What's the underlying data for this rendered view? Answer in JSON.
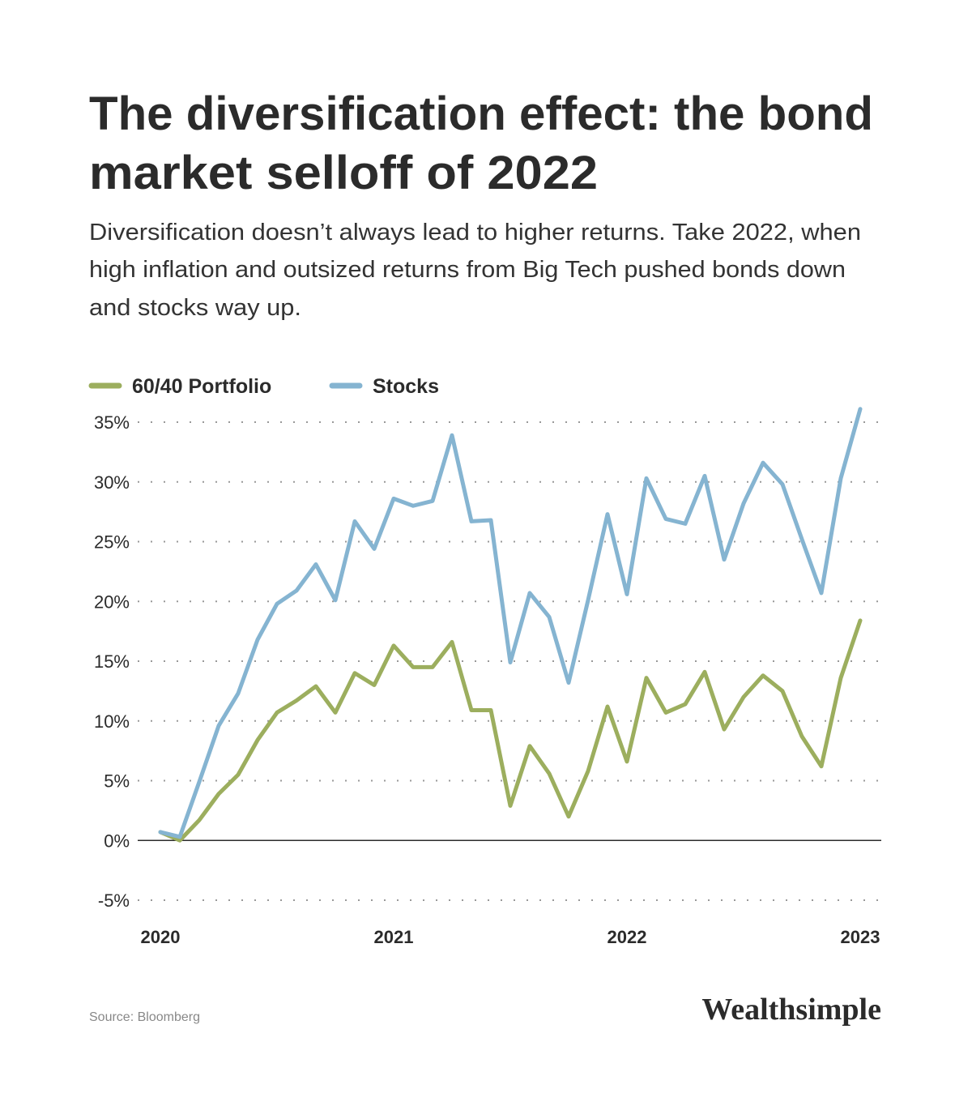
{
  "chart_data": {
    "type": "line",
    "title": [
      "The diversification effect: the bond",
      "market selloff of 2022"
    ],
    "subtitle": [
      "Diversification doesn’t always lead to higher returns. Take 2022, when",
      "high inflation and outsized returns from Big Tech pushed bonds down",
      "and stocks way up."
    ],
    "categories": [
      "2020",
      null,
      null,
      null,
      null,
      null,
      null,
      null,
      null,
      null,
      null,
      null,
      "2021",
      null,
      null,
      null,
      null,
      null,
      null,
      null,
      null,
      null,
      null,
      null,
      "2022",
      null,
      null,
      null,
      null,
      null,
      null,
      null,
      null,
      null,
      null,
      null,
      "2023"
    ],
    "series": [
      {
        "name": "60/40 Portfolio",
        "color": "#9cae5e",
        "values": [
          0.7,
          0.0,
          1.7,
          3.9,
          5.5,
          8.4,
          10.7,
          11.7,
          12.9,
          10.7,
          14.0,
          13.0,
          16.3,
          14.5,
          14.5,
          16.6,
          10.9,
          10.9,
          2.9,
          7.9,
          5.6,
          2.0,
          5.8,
          11.2,
          6.6,
          13.6,
          10.7,
          11.4,
          14.1,
          9.3,
          12.0,
          13.8,
          12.5,
          8.7,
          6.2,
          13.6,
          18.4
        ]
      },
      {
        "name": "Stocks",
        "color": "#85b4d1",
        "values": [
          0.7,
          0.3,
          4.9,
          9.6,
          12.3,
          16.8,
          19.8,
          20.9,
          23.1,
          20.1,
          26.7,
          24.4,
          28.6,
          28.0,
          28.4,
          33.9,
          26.7,
          26.8,
          14.9,
          20.7,
          18.7,
          13.2,
          20.1,
          27.3,
          20.6,
          30.3,
          26.9,
          26.5,
          30.5,
          23.5,
          28.2,
          31.6,
          29.8,
          25.2,
          20.7,
          30.3,
          36.1
        ]
      }
    ],
    "ylim": [
      -5,
      35
    ],
    "yticks": [
      {
        "value": 35,
        "label": "35%"
      },
      {
        "value": 30,
        "label": "30%"
      },
      {
        "value": 25,
        "label": "25%"
      },
      {
        "value": 20,
        "label": "20%"
      },
      {
        "value": 15,
        "label": "15%"
      },
      {
        "value": 10,
        "label": "10%"
      },
      {
        "value": 5,
        "label": "5%"
      },
      {
        "value": 0,
        "label": "0%"
      },
      {
        "value": -5,
        "label": "-5%"
      }
    ],
    "grid": true,
    "legend": "top-left",
    "source": "Source: Bloomberg",
    "brand": "Wealthsimple"
  }
}
